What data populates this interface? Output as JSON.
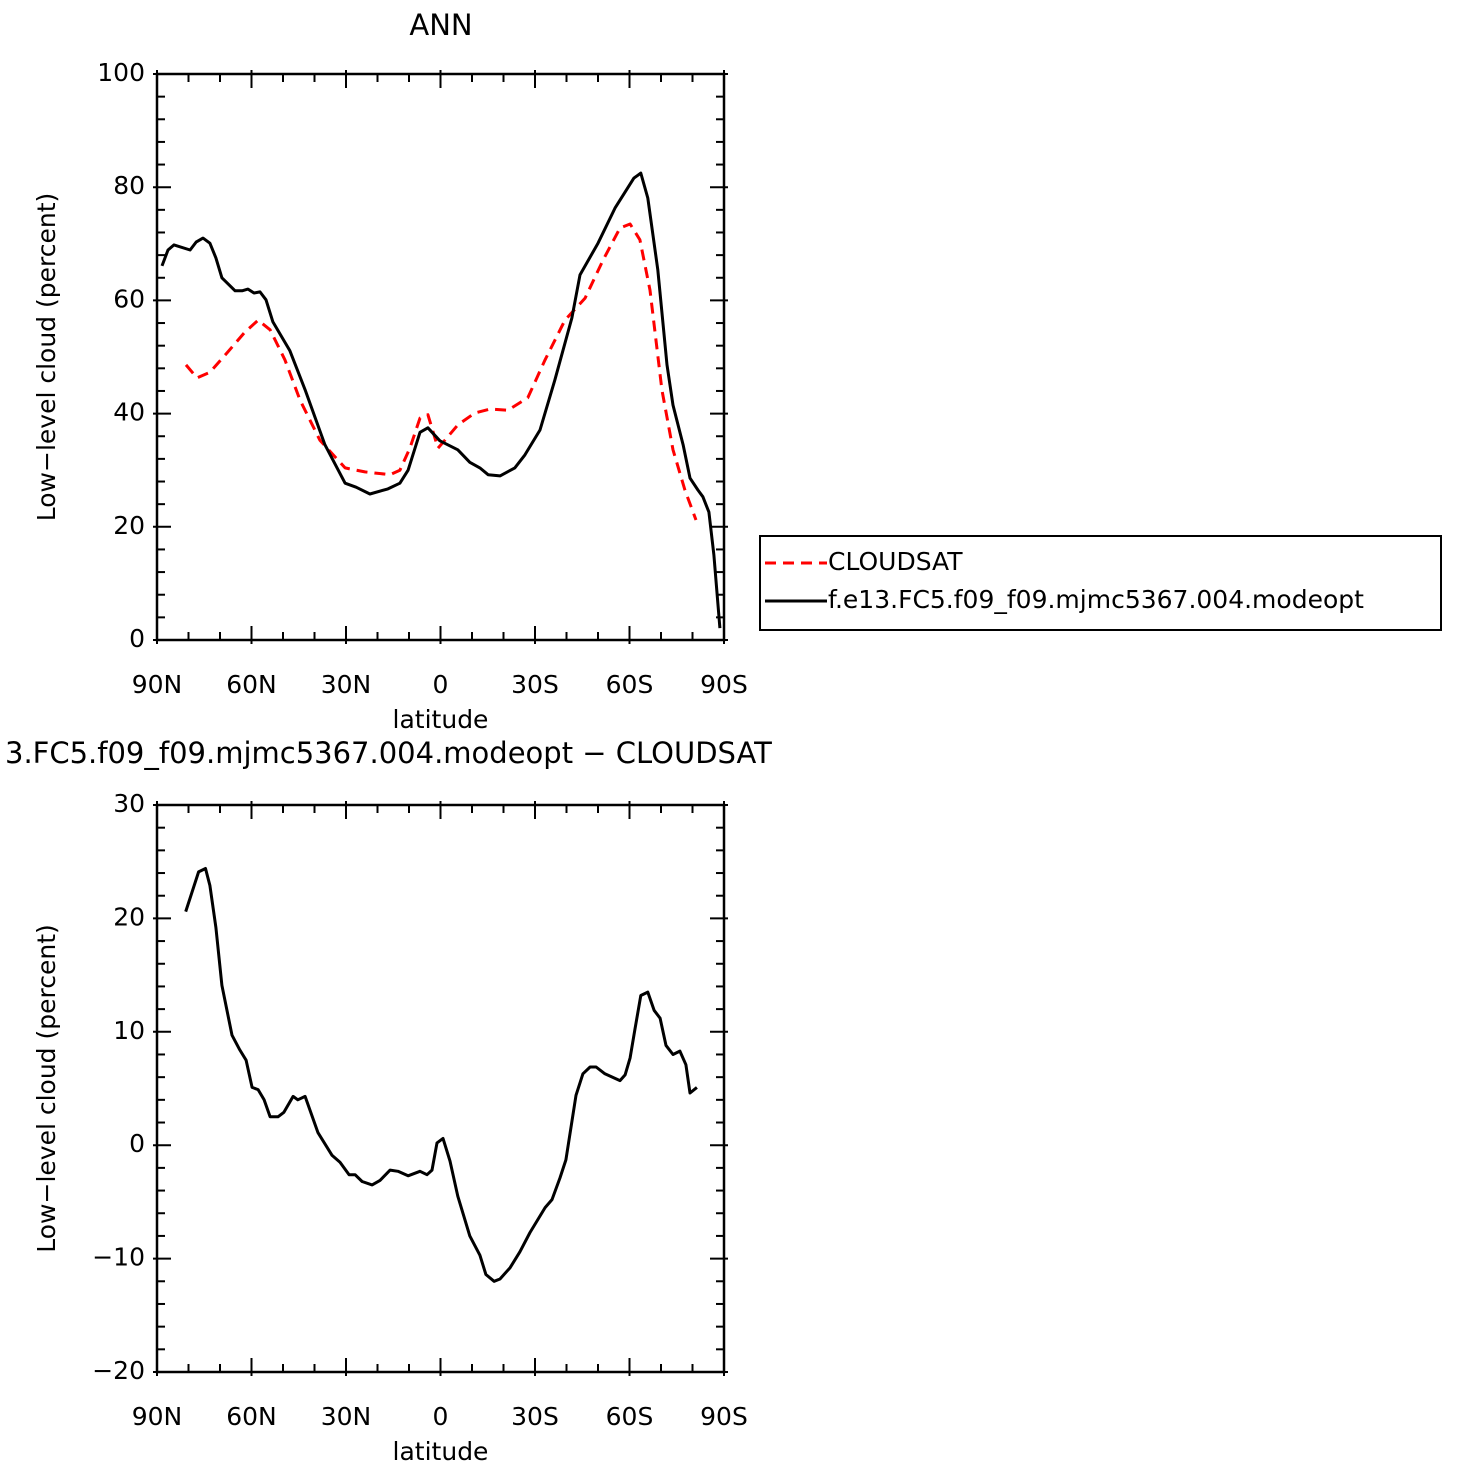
{
  "chart_data": [
    {
      "type": "line",
      "title": "ANN",
      "x_label": "latitude",
      "y_label": "Low−level cloud (percent)",
      "xlim": [
        90,
        -90
      ],
      "xticks": [
        {
          "value": 90,
          "label": "90N"
        },
        {
          "value": 60,
          "label": "60N"
        },
        {
          "value": 30,
          "label": "30N"
        },
        0,
        {
          "value": -30,
          "label": "30S"
        },
        {
          "value": -60,
          "label": "60S"
        },
        {
          "value": -90,
          "label": "90S"
        }
      ],
      "ylim": [
        0,
        100
      ],
      "yticks": [
        0,
        20,
        40,
        60,
        80,
        100
      ],
      "series": [
        {
          "name": "CLOUDSAT",
          "color": "#ff0000",
          "line_style": "dashed",
          "x": [
            80.8,
            77.3,
            73.2,
            67.5,
            62.1,
            57.9,
            54.1,
            49.4,
            44.6,
            38.3,
            30.3,
            24.0,
            16.0,
            12.9,
            9.7,
            6.5,
            4.0,
            0.8,
            -1.4,
            -5.5,
            -10.9,
            -15.7,
            -21.4,
            -27.7,
            -33.2,
            -39.5,
            -45.9,
            -51.6,
            -57.0,
            -60.2,
            -63.3,
            -66.5,
            -70.3,
            -73.8,
            -77.6,
            -81.1
          ],
          "values": [
            48.6,
            46.3,
            47.3,
            50.9,
            54.4,
            56.5,
            54.8,
            49.5,
            42.4,
            35.3,
            30.4,
            29.7,
            29.2,
            30.0,
            33.9,
            39.2,
            39.8,
            33.9,
            35.3,
            38.0,
            40.1,
            40.8,
            40.6,
            42.8,
            49.5,
            56.5,
            60.4,
            67.1,
            72.8,
            73.5,
            70.7,
            61.8,
            44.2,
            33.6,
            26.5,
            21.2
          ]
        },
        {
          "name": "f.e13.FC5.f09_f09.mjmc5367.004.modeopt",
          "color": "#000000",
          "line_style": "solid",
          "x": [
            88.4,
            86.5,
            84.6,
            79.5,
            77.6,
            75.4,
            73.2,
            71.3,
            69.4,
            65.2,
            63.0,
            61.1,
            59.2,
            57.3,
            55.4,
            53.2,
            47.8,
            43.0,
            36.7,
            30.3,
            26.8,
            22.4,
            16.7,
            12.9,
            10.3,
            6.5,
            4.0,
            0.2,
            -5.5,
            -9.3,
            -12.5,
            -15.1,
            -18.9,
            -23.6,
            -26.8,
            -31.6,
            -36.3,
            -41.7,
            -44.3,
            -50.0,
            -55.4,
            -61.4,
            -63.6,
            -65.8,
            -69.0,
            -71.9,
            -73.8,
            -77.0,
            -79.2,
            -81.7,
            -83.3,
            -85.2,
            -86.8,
            -88.7
          ],
          "values": [
            66.1,
            68.9,
            69.8,
            68.9,
            70.3,
            71.0,
            70.1,
            67.5,
            64.0,
            61.7,
            61.7,
            62.0,
            61.3,
            61.5,
            60.1,
            56.2,
            51.1,
            44.2,
            34.5,
            27.7,
            27.0,
            25.8,
            26.7,
            27.7,
            30.0,
            36.7,
            37.5,
            35.2,
            33.6,
            31.4,
            30.4,
            29.2,
            29.0,
            30.4,
            32.7,
            37.1,
            45.9,
            56.9,
            64.5,
            70.1,
            76.3,
            81.6,
            82.5,
            78.1,
            65.4,
            48.6,
            41.5,
            34.5,
            28.6,
            26.5,
            25.3,
            22.6,
            15.0,
            2.1
          ]
        }
      ]
    },
    {
      "type": "line",
      "title": "3.FC5.f09_f09.mjmc5367.004.modeopt − CLOUDSAT",
      "x_label": "latitude",
      "y_label": "Low−level cloud (percent)",
      "xlim": [
        90,
        -90
      ],
      "xticks": [
        {
          "value": 90,
          "label": "90N"
        },
        {
          "value": 60,
          "label": "60N"
        },
        {
          "value": 30,
          "label": "30N"
        },
        0,
        {
          "value": -30,
          "label": "30S"
        },
        {
          "value": -60,
          "label": "60S"
        },
        {
          "value": -90,
          "label": "90S"
        }
      ],
      "ylim": [
        -20,
        30
      ],
      "yticks": [
        {
          "value": -20,
          "label": "−20"
        },
        {
          "value": -10,
          "label": "−10"
        },
        0,
        10,
        20,
        30
      ],
      "color": "#000000",
      "x": [
        80.9,
        76.8,
        74.6,
        73.2,
        71.3,
        69.4,
        66.2,
        63.7,
        61.7,
        59.8,
        57.9,
        56.0,
        54.1,
        51.6,
        49.7,
        46.8,
        45.3,
        43.0,
        38.9,
        34.4,
        31.9,
        29.0,
        27.1,
        24.9,
        21.7,
        19.2,
        16.0,
        13.5,
        10.3,
        6.5,
        4.3,
        2.7,
        1.1,
        -0.8,
        -3.0,
        -5.5,
        -9.3,
        -12.5,
        -14.4,
        -17.0,
        -18.9,
        -22.1,
        -25.2,
        -28.4,
        -33.2,
        -35.4,
        -37.9,
        -39.8,
        -43.0,
        -45.2,
        -47.5,
        -49.4,
        -52.2,
        -57.0,
        -58.6,
        -60.2,
        -61.7,
        -63.6,
        -65.8,
        -67.8,
        -69.7,
        -71.6,
        -73.8,
        -76.0,
        -77.9,
        -79.2,
        -81.4
      ],
      "values": [
        20.6,
        24.1,
        24.4,
        22.9,
        19.2,
        14.1,
        9.7,
        8.4,
        7.5,
        5.1,
        4.9,
        4.0,
        2.5,
        2.5,
        2.9,
        4.3,
        4.0,
        4.3,
        1.1,
        -0.9,
        -1.5,
        -2.6,
        -2.6,
        -3.2,
        -3.5,
        -3.1,
        -2.2,
        -2.3,
        -2.7,
        -2.3,
        -2.6,
        -2.2,
        0.2,
        0.6,
        -1.4,
        -4.5,
        -8.0,
        -9.7,
        -11.4,
        -12.0,
        -11.8,
        -10.8,
        -9.4,
        -7.7,
        -5.5,
        -4.8,
        -2.9,
        -1.3,
        4.4,
        6.3,
        6.9,
        6.9,
        6.3,
        5.7,
        6.2,
        7.7,
        10.2,
        13.2,
        13.5,
        11.9,
        11.2,
        8.8,
        8.0,
        8.3,
        7.1,
        4.6,
        5.1
      ]
    }
  ]
}
